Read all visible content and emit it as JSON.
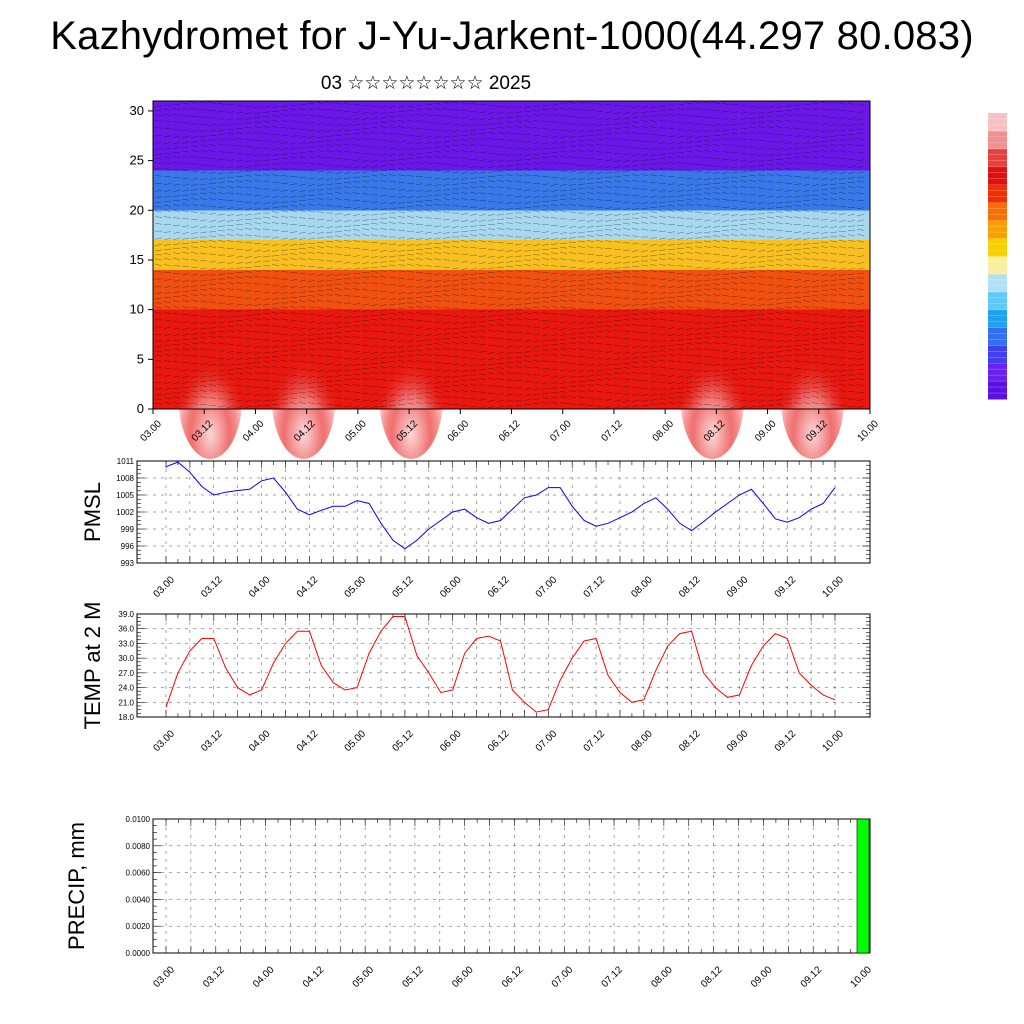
{
  "title": "Kazhydromet for J-Yu-Jarkent-1000(44.297 80.083)",
  "subtitle": "03 ☆☆☆☆☆☆☆☆ 2025",
  "colorbar": {
    "colors": [
      "#5a10e0",
      "#6a20f0",
      "#4040f0",
      "#3070f0",
      "#20a0f0",
      "#60c8f8",
      "#b0e0f8",
      "#f8f0a0",
      "#f8d000",
      "#f8a000",
      "#f87000",
      "#f03000",
      "#e01010",
      "#e84040",
      "#f09090",
      "#f8c0c0"
    ]
  },
  "chart_data": [
    {
      "id": "cross-section",
      "type": "heatmap",
      "x_ticks": [
        "03.00",
        "03.12",
        "04.00",
        "04.12",
        "05.00",
        "05.12",
        "06.00",
        "06.12",
        "07.00",
        "07.12",
        "08.00",
        "08.12",
        "09.00",
        "09.12",
        "10.00"
      ],
      "y_ticks": [
        "0",
        "5",
        "10",
        "15",
        "20",
        "25",
        "30"
      ],
      "ylim": [
        0,
        31
      ],
      "bands": [
        {
          "from": 0,
          "to": 10,
          "color": "#e81810"
        },
        {
          "from": 10,
          "to": 14,
          "color": "#f05010"
        },
        {
          "from": 14,
          "to": 17,
          "color": "#f8c020"
        },
        {
          "from": 17,
          "to": 20,
          "color": "#a8d8f0"
        },
        {
          "from": 20,
          "to": 24,
          "color": "#3878e8"
        },
        {
          "from": 24,
          "to": 31,
          "color": "#6a18e8"
        }
      ],
      "warm_peaks": [
        0.08,
        0.21,
        0.36,
        0.78,
        0.92
      ]
    },
    {
      "id": "pmsl",
      "type": "line",
      "ylabel": "PMSL",
      "y_ticks": [
        "1011",
        "1008",
        "1005",
        "1002",
        "999",
        "996",
        "993"
      ],
      "ylim": [
        993,
        1011
      ],
      "x_ticks": [
        "03.00",
        "03.12",
        "04.00",
        "04.12",
        "05.00",
        "05.12",
        "06.00",
        "06.12",
        "07.00",
        "07.12",
        "08.00",
        "08.12",
        "09.00",
        "09.12",
        "10.00"
      ],
      "color": "#0000ff",
      "values": [
        1010.0,
        1010.8,
        1009.0,
        1006.5,
        1005.0,
        1005.5,
        1005.8,
        1006.0,
        1007.5,
        1008.0,
        1005.5,
        1002.5,
        1001.5,
        1002.3,
        1003.0,
        1003.0,
        1004.0,
        1003.5,
        1000.0,
        997.0,
        995.5,
        997.0,
        999.0,
        1000.5,
        1002.0,
        1002.5,
        1001.0,
        1000.0,
        1000.5,
        1002.5,
        1004.5,
        1005.0,
        1006.3,
        1006.3,
        1003.0,
        1000.5,
        999.5,
        1000.0,
        1001.0,
        1002.0,
        1003.5,
        1004.5,
        1002.5,
        1000.0,
        998.7,
        1000.3,
        1002.0,
        1003.5,
        1005.0,
        1006.0,
        1003.5,
        1000.8,
        1000.2,
        1001.0,
        1002.5,
        1003.5,
        1006.3
      ]
    },
    {
      "id": "temp2m",
      "type": "line",
      "ylabel": "TEMP at 2 M",
      "y_ticks": [
        "39.0",
        "36.0",
        "33.0",
        "30.0",
        "27.0",
        "24.0",
        "21.0",
        "18.0"
      ],
      "ylim": [
        18,
        39
      ],
      "x_ticks": [
        "03.00",
        "03.12",
        "04.00",
        "04.12",
        "05.00",
        "05.12",
        "06.00",
        "06.12",
        "07.00",
        "07.12",
        "08.00",
        "08.12",
        "09.00",
        "09.12",
        "10.00"
      ],
      "color": "#ff0000",
      "values": [
        20.0,
        27.0,
        31.5,
        34.0,
        34.0,
        28.0,
        24.0,
        22.5,
        23.5,
        29.0,
        33.0,
        35.5,
        35.5,
        28.5,
        25.0,
        23.5,
        24.0,
        31.0,
        35.5,
        38.5,
        38.5,
        30.5,
        27.0,
        23.0,
        23.5,
        31.0,
        34.0,
        34.5,
        33.5,
        23.5,
        21.0,
        19.0,
        19.5,
        25.5,
        30.0,
        33.5,
        34.0,
        26.5,
        23.0,
        21.0,
        21.5,
        27.5,
        32.5,
        35.0,
        35.5,
        27.0,
        24.0,
        22.0,
        22.5,
        28.5,
        32.5,
        35.0,
        34.0,
        27.0,
        24.5,
        22.5,
        21.5
      ]
    },
    {
      "id": "precip",
      "type": "bar",
      "ylabel": "PRECIP, mm",
      "y_ticks": [
        "0.0100",
        "0.0080",
        "0.0060",
        "0.0040",
        "0.0020",
        "0.0000"
      ],
      "ylim": [
        0,
        0.01
      ],
      "x_ticks": [
        "03.00",
        "03.12",
        "04.00",
        "04.12",
        "05.00",
        "05.12",
        "06.00",
        "06.12",
        "07.00",
        "07.12",
        "08.00",
        "08.12",
        "09.00",
        "09.12",
        "10.00"
      ],
      "bar_color": "#00ff00",
      "bars": [
        {
          "x": "10.00",
          "value": 0.01
        }
      ]
    }
  ]
}
